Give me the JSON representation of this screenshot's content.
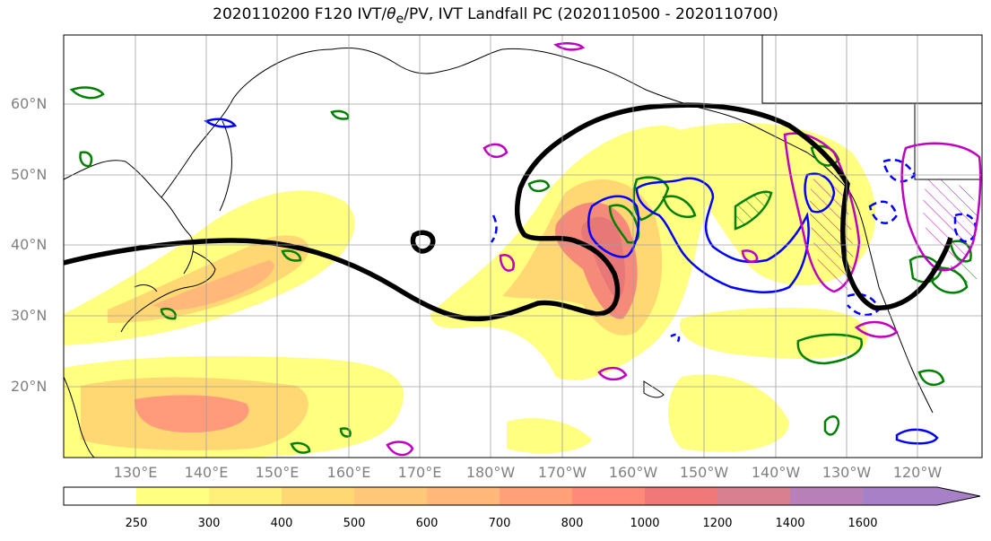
{
  "title": {
    "pre": "2020110200 F120 IVT/",
    "sym": "θ",
    "sub": "e",
    "post": "/PV, IVT Landfall PC (2020110500 - 2020110700)"
  },
  "lat_labels": [
    "60°N",
    "50°N",
    "40°N",
    "30°N",
    "20°N"
  ],
  "lon_labels": [
    "130°E",
    "140°E",
    "150°E",
    "160°E",
    "170°E",
    "180°W",
    "170°W",
    "160°W",
    "150°W",
    "140°W",
    "130°W",
    "120°W"
  ],
  "colorbar": {
    "labels": [
      "250",
      "300",
      "400",
      "500",
      "600",
      "700",
      "800",
      "1000",
      "1200",
      "1400",
      "1600"
    ],
    "colors": [
      "#ffff80",
      "#fff07a",
      "#ffd874",
      "#ffc878",
      "#ffb87a",
      "#ffa078",
      "#ff8a7a",
      "#f07878",
      "#d88090",
      "#b880b8",
      "#a880c8"
    ]
  },
  "colors": {
    "ivt_low": "#ffff80",
    "ivt_high": "#f07878",
    "coast": "#000000",
    "contour_thick": "#000000",
    "pv_green": "#008000",
    "pv_blue": "#0000ff",
    "pv_magenta": "#c000c0",
    "grid": "#a0a0a0",
    "tick_label": "#808080"
  }
}
